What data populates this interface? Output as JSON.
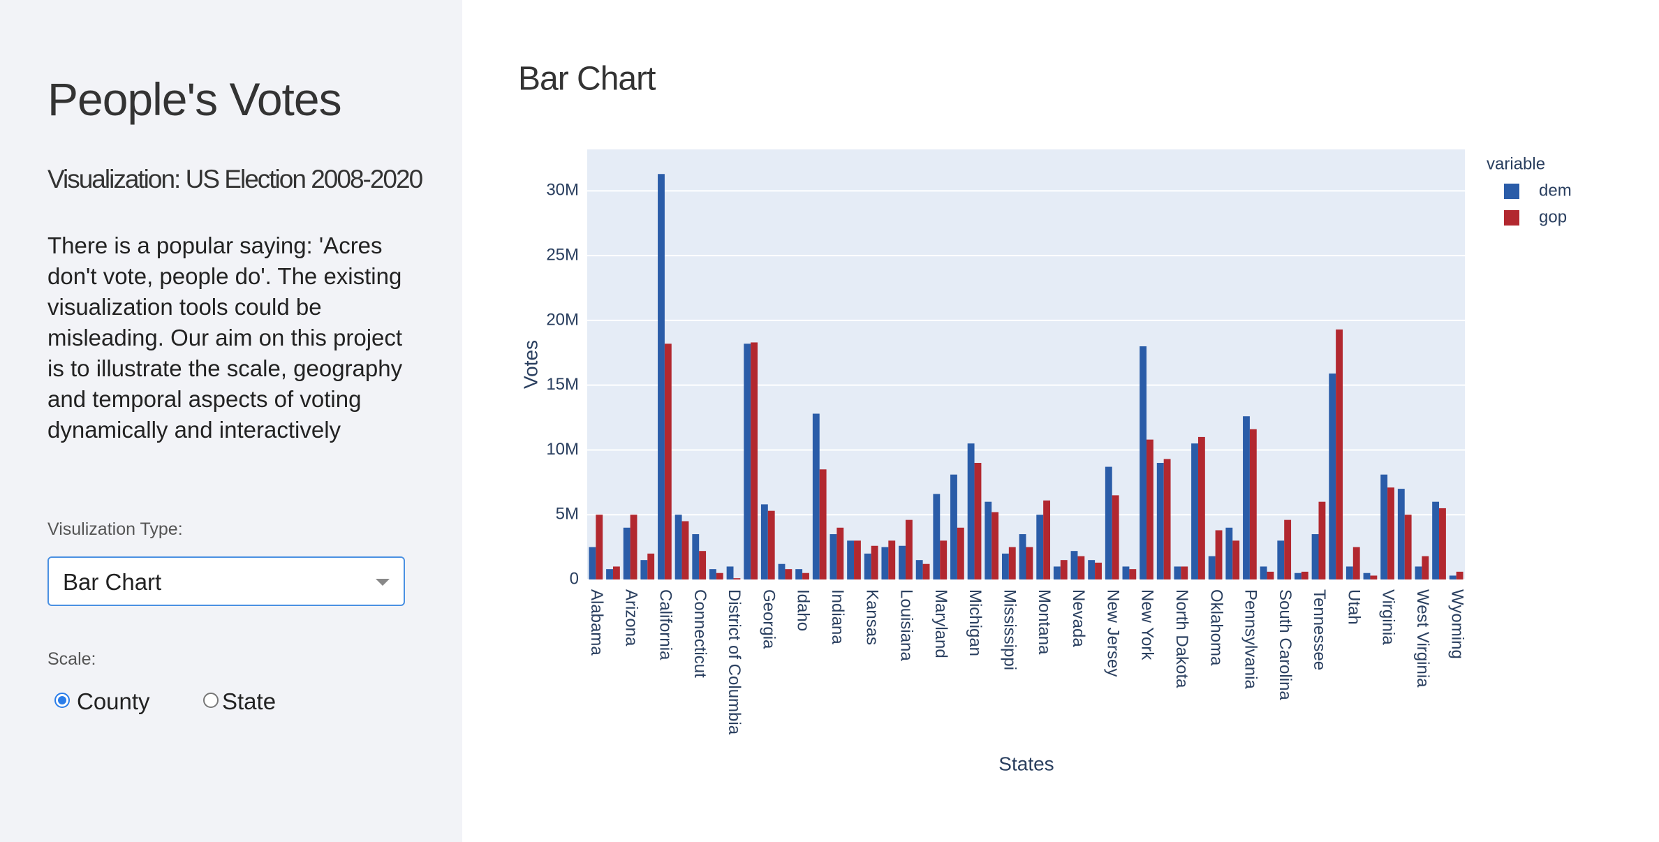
{
  "sidebar": {
    "title": "People's Votes",
    "subtitle": "Visualization: US Election 2008-2020",
    "description": "There is a popular saying: 'Acres don't vote, people do'. The existing visualization tools could be misleading. Our aim on this project is to illustrate the scale, geography and temporal aspects of voting dynamically and interactively",
    "viz_type_label": "Visulization Type:",
    "viz_type_value": "Bar Chart",
    "scale_label": "Scale:",
    "scale_options": [
      "County",
      "State"
    ]
  },
  "chart_data": {
    "type": "bar",
    "title": "Bar Chart",
    "x_label": "States",
    "y_label": "Votes",
    "legend_title": "variable",
    "categories": [
      "Alabama",
      null,
      "Arizona",
      null,
      "California",
      null,
      "Connecticut",
      null,
      "District of Columbia",
      null,
      "Georgia",
      null,
      "Idaho",
      null,
      "Indiana",
      null,
      "Kansas",
      null,
      "Louisiana",
      null,
      "Maryland",
      null,
      "Michigan",
      null,
      "Mississippi",
      null,
      "Montana",
      null,
      "Nevada",
      null,
      "New Jersey",
      null,
      "New York",
      null,
      "North Dakota",
      null,
      "Oklahoma",
      null,
      "Pennsylvania",
      null,
      "South Carolina",
      null,
      "Tennessee",
      null,
      "Utah",
      null,
      "Virginia",
      null,
      "West Virginia",
      null,
      "Wyoming"
    ],
    "series": [
      {
        "name": "dem",
        "color": "#2a5ca8",
        "values": [
          2500000,
          800000,
          4000000,
          1500000,
          31300000,
          5000000,
          3500000,
          800000,
          1000000,
          18200000,
          5800000,
          1200000,
          800000,
          12800000,
          3500000,
          3000000,
          2000000,
          2500000,
          2600000,
          1500000,
          6600000,
          8100000,
          10500000,
          6000000,
          2000000,
          3500000,
          5000000,
          1000000,
          2200000,
          1500000,
          8700000,
          1000000,
          18000000,
          9000000,
          1000000,
          10500000,
          1800000,
          4000000,
          12600000,
          1000000,
          3000000,
          500000,
          3500000,
          15900000,
          1000000,
          500000,
          8100000,
          7000000,
          1000000,
          6000000,
          300000
        ]
      },
      {
        "name": "gop",
        "color": "#b2282f",
        "values": [
          5000000,
          1000000,
          5000000,
          2000000,
          18200000,
          4500000,
          2200000,
          500000,
          100000,
          18300000,
          5300000,
          800000,
          500000,
          8500000,
          4000000,
          3000000,
          2600000,
          3000000,
          4600000,
          1200000,
          3000000,
          4000000,
          9000000,
          5200000,
          2500000,
          2500000,
          6100000,
          1500000,
          1800000,
          1300000,
          6500000,
          800000,
          10800000,
          9300000,
          1000000,
          11000000,
          3800000,
          3000000,
          11600000,
          600000,
          4600000,
          600000,
          6000000,
          19300000,
          2500000,
          300000,
          7100000,
          5000000,
          1800000,
          5500000,
          600000
        ]
      }
    ],
    "ylim": [
      0,
      33200000
    ],
    "yticks": [
      0,
      {
        "value": 5000000,
        "label": "5M"
      },
      {
        "value": 10000000,
        "label": "10M"
      },
      {
        "value": 15000000,
        "label": "15M"
      },
      {
        "value": 20000000,
        "label": "20M"
      },
      {
        "value": 25000000,
        "label": "25M"
      },
      {
        "value": 30000000,
        "label": "30M"
      }
    ],
    "grid": true,
    "legend": "right"
  }
}
